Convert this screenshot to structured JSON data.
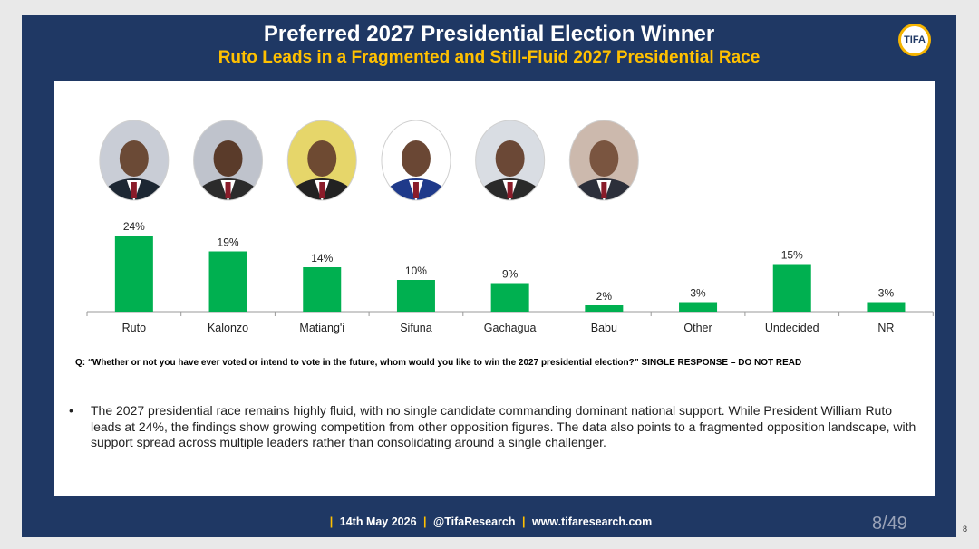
{
  "slide": {
    "title": "Preferred 2027 Presidential Election Winner",
    "subtitle": "Ruto Leads in a Fragmented and Still-Fluid 2027 Presidential Race",
    "logo_text": "TIFA",
    "question": "Q: “Whether or not you have ever voted or intend to vote in the future, whom would you like to win the 2027 presidential election?” SINGLE RESPONSE – DO NOT READ",
    "bullet_marker": "•",
    "bullet": "The 2027 presidential race remains highly fluid, with no single candidate commanding dominant national support. While President William Ruto leads at 24%, the findings show growing competition from other opposition figures. The data also points to a fragmented opposition landscape, with support spread across multiple leaders rather than consolidating around a single challenger.",
    "footer": {
      "date": "14th May 2026",
      "handle": "@TifaResearch",
      "site": "www.tifaresearch.com"
    },
    "page": "8/49",
    "page_small": "8"
  },
  "chart_data": {
    "type": "bar",
    "categories": [
      "Ruto",
      "Kalonzo",
      "Matiang'i",
      "Sifuna",
      "Gachagua",
      "Babu",
      "Other",
      "Undecided",
      "NR"
    ],
    "values": [
      24,
      19,
      14,
      10,
      9,
      2,
      3,
      15,
      3
    ],
    "value_labels": [
      "24%",
      "19%",
      "14%",
      "10%",
      "9%",
      "2%",
      "3%",
      "15%",
      "3%"
    ],
    "portraits": [
      "Ruto",
      "Kalonzo",
      "Matiang'i",
      "Sifuna",
      "Gachagua",
      "Babu"
    ],
    "title": "",
    "xlabel": "",
    "ylabel": "",
    "grid": false,
    "bar_color": "#00b050"
  }
}
